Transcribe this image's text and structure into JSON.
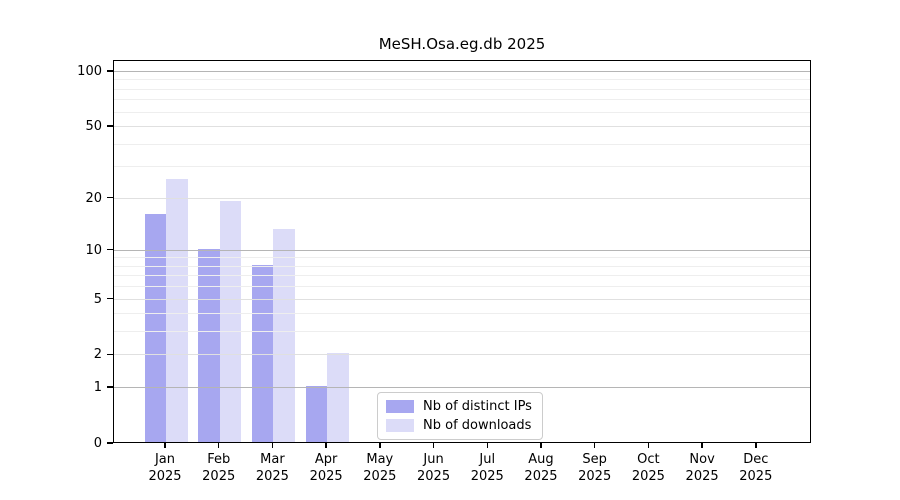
{
  "title": "MeSH.Osa.eg.db 2025",
  "chart_data": {
    "type": "bar",
    "title": "MeSH.Osa.eg.db 2025",
    "y_scale": "log1p",
    "grid": true,
    "legend_position": "bottom-center-inside",
    "categories": [
      "Jan 2025",
      "Feb 2025",
      "Mar 2025",
      "Apr 2025",
      "May 2025",
      "Jun 2025",
      "Jul 2025",
      "Aug 2025",
      "Sep 2025",
      "Oct 2025",
      "Nov 2025",
      "Dec 2025"
    ],
    "series": [
      {
        "name": "Nb of distinct IPs",
        "color": "#a7a7f0",
        "values": [
          16,
          10,
          8,
          1,
          0,
          0,
          0,
          0,
          0,
          0,
          0,
          0
        ]
      },
      {
        "name": "Nb of downloads",
        "color": "#dcdcf8",
        "values": [
          25,
          19,
          13,
          2,
          0,
          0,
          0,
          0,
          0,
          0,
          0,
          0
        ]
      }
    ],
    "yticks": [
      0,
      1,
      2,
      5,
      10,
      20,
      50,
      100
    ],
    "minor_gridlines": [
      3,
      4,
      6,
      7,
      8,
      9,
      30,
      40,
      60,
      70,
      80,
      90
    ],
    "ylim": [
      0,
      115
    ],
    "xlabel": "",
    "ylabel": "",
    "grid_colors": {
      "major_power_of_ten": "#b5b5b5",
      "major_labeled": "#e0e0e0",
      "minor": "#eeeeee"
    }
  }
}
